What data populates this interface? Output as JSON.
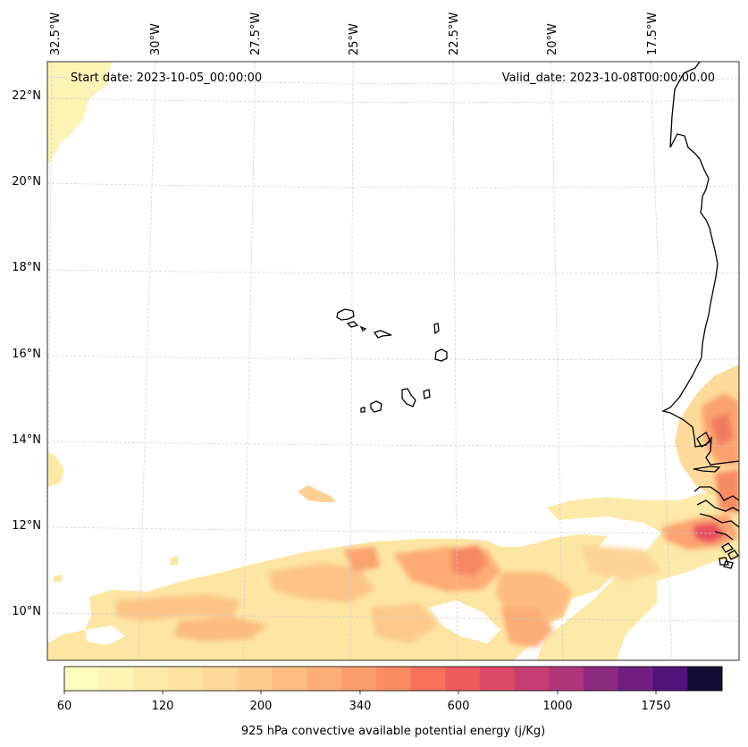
{
  "header": {
    "start_date": "Start date: 2023-10-05_00:00:00",
    "valid_date": "Valid_date: 2023-10-08T00:00:00.00"
  },
  "axes": {
    "lon_labels": [
      "32.5°W",
      "30°W",
      "27.5°W",
      "25°W",
      "22.5°W",
      "20°W",
      "17.5°W"
    ],
    "lat_labels": [
      "22°N",
      "20°N",
      "18°N",
      "16°N",
      "14°N",
      "12°N",
      "10°N"
    ]
  },
  "colorbar": {
    "label": "925 hPa convective available potential energy (j/Kg)",
    "ticks": [
      "60",
      "120",
      "200",
      "340",
      "600",
      "1000",
      "1750"
    ],
    "colors": [
      "#fcfdbf",
      "#fcf3b5",
      "#fdeaa9",
      "#fde2a0",
      "#fed899",
      "#fecc8f",
      "#febd82",
      "#fdae78",
      "#fd9f6c",
      "#fb8c63",
      "#f7705c",
      "#ef5a5b",
      "#de4968",
      "#c83e73",
      "#b1357a",
      "#8c2981",
      "#721f81",
      "#51127c",
      "#140e36"
    ]
  },
  "colors": {
    "coastline": "#000000",
    "gridline": "#c8c8c8"
  }
}
